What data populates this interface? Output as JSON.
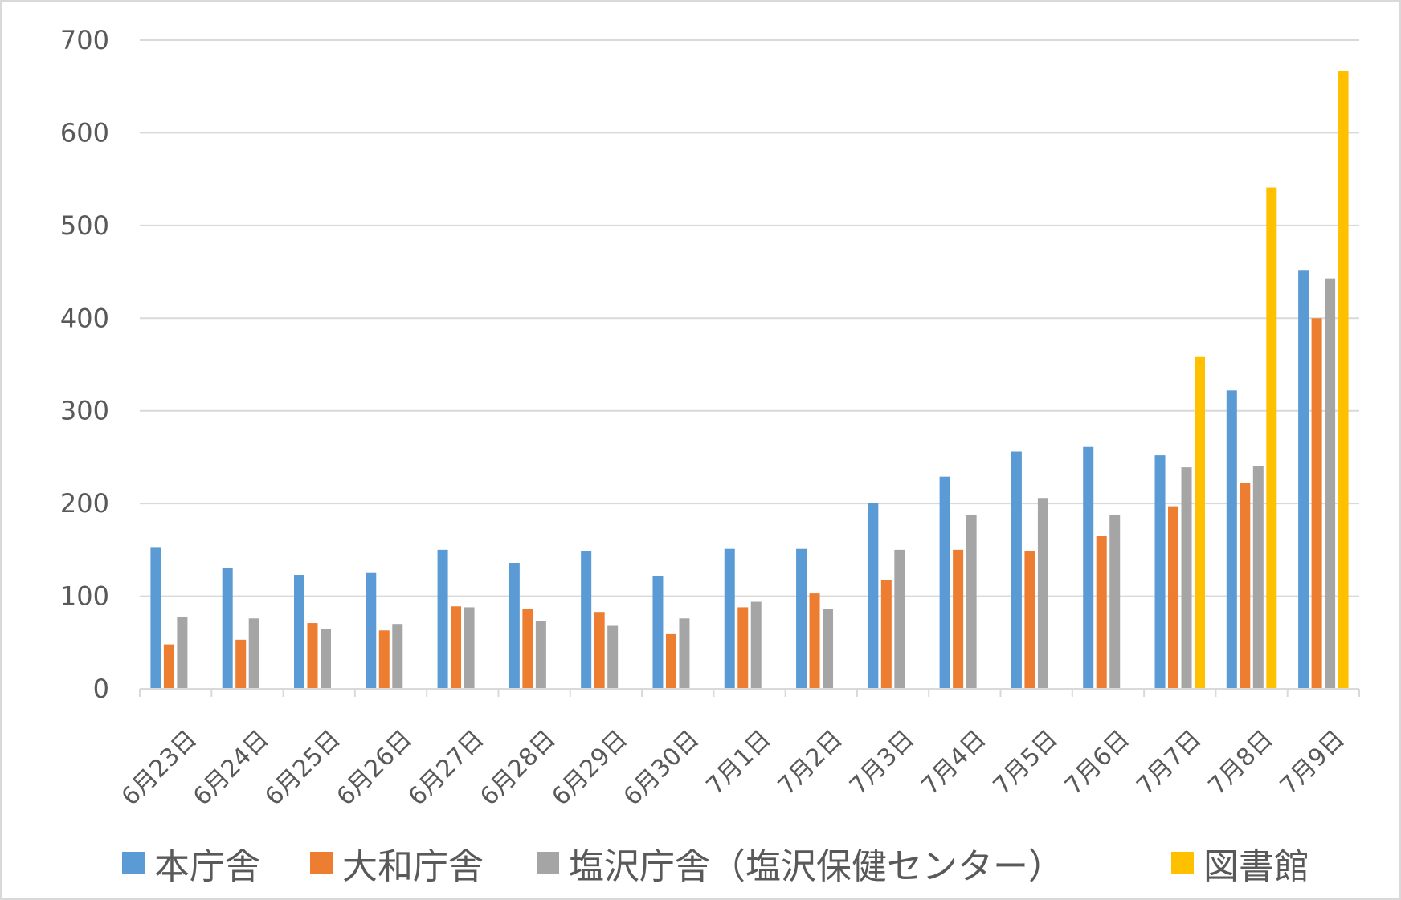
{
  "chart_data": {
    "type": "bar",
    "title": "",
    "xlabel": "",
    "ylabel": "",
    "ylim": [
      0,
      700
    ],
    "yticks": [
      "0",
      "100",
      "200",
      "300",
      "400",
      "500",
      "600",
      "700"
    ],
    "grid": true,
    "legend_position": "bottom",
    "categories": [
      "6月23日",
      "6月24日",
      "6月25日",
      "6月26日",
      "6月27日",
      "6月28日",
      "6月29日",
      "6月30日",
      "7月1日",
      "7月2日",
      "7月3日",
      "7月4日",
      "7月5日",
      "7月6日",
      "7月7日",
      "7月8日",
      "7月9日"
    ],
    "series": [
      {
        "name": "本庁舎",
        "color": "#5b9bd5",
        "values": [
          153,
          130,
          123,
          125,
          150,
          136,
          149,
          122,
          151,
          151,
          201,
          229,
          256,
          261,
          252,
          322,
          452
        ]
      },
      {
        "name": "大和庁舎",
        "color": "#ed7d31",
        "values": [
          48,
          53,
          71,
          63,
          89,
          86,
          83,
          59,
          88,
          103,
          117,
          150,
          149,
          165,
          197,
          222,
          400
        ]
      },
      {
        "name": "塩沢庁舎（塩沢保健センター）",
        "color": "#a5a5a5",
        "values": [
          78,
          76,
          65,
          70,
          88,
          73,
          68,
          76,
          94,
          86,
          150,
          188,
          206,
          188,
          239,
          240,
          443
        ]
      },
      {
        "name": "図書館",
        "color": "#ffc000",
        "values": [
          null,
          null,
          null,
          null,
          null,
          null,
          null,
          null,
          null,
          null,
          null,
          null,
          null,
          null,
          358,
          541,
          667
        ]
      }
    ]
  }
}
